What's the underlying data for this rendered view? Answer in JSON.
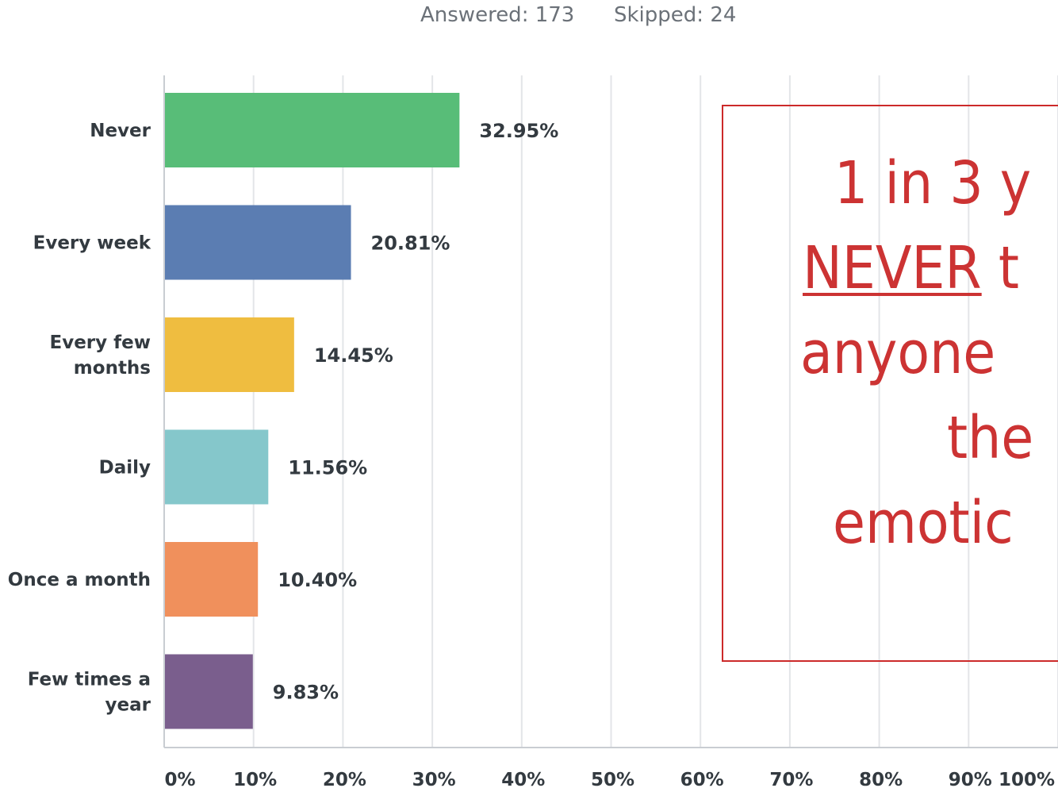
{
  "stats": {
    "answered": "Answered: 173",
    "skipped": "Skipped: 24"
  },
  "colors": {
    "never": "#58bd78",
    "every_week": "#5b7db2",
    "every_few_months": "#efbd40",
    "daily": "#85c7cb",
    "once_a_month": "#f0905c",
    "few_times_a_year": "#7a5e8d",
    "callout": "#cc3333"
  },
  "chart_data": {
    "type": "bar",
    "orientation": "horizontal",
    "categories": [
      [
        "Never"
      ],
      [
        "Every week"
      ],
      [
        "Every few",
        "months"
      ],
      [
        "Daily"
      ],
      [
        "Once a month"
      ],
      [
        "Few times a",
        "year"
      ]
    ],
    "values": [
      32.95,
      20.81,
      14.45,
      11.56,
      10.4,
      9.83
    ],
    "value_labels": [
      "32.95%",
      "20.81%",
      "14.45%",
      "11.56%",
      "10.40%",
      "9.83%"
    ],
    "bar_colors": [
      "#58bd78",
      "#5b7db2",
      "#efbd40",
      "#85c7cb",
      "#f0905c",
      "#7a5e8d"
    ],
    "xlim": [
      0,
      100
    ],
    "xticks": [
      0,
      10,
      20,
      30,
      40,
      50,
      60,
      70,
      80,
      90,
      100
    ],
    "xtick_labels": [
      "0%",
      "10%",
      "20%",
      "30%",
      "40%",
      "50%",
      "60%",
      "70%",
      "80%",
      "90%",
      "100%"
    ],
    "grid": true,
    "title": "",
    "xlabel": "",
    "ylabel": ""
  },
  "callout": {
    "line1": "1 in 3 y",
    "line2_underlined": "NEVER",
    "line2_rest": " t",
    "line3": "anyone",
    "line4": "the",
    "line5": "emotic"
  }
}
